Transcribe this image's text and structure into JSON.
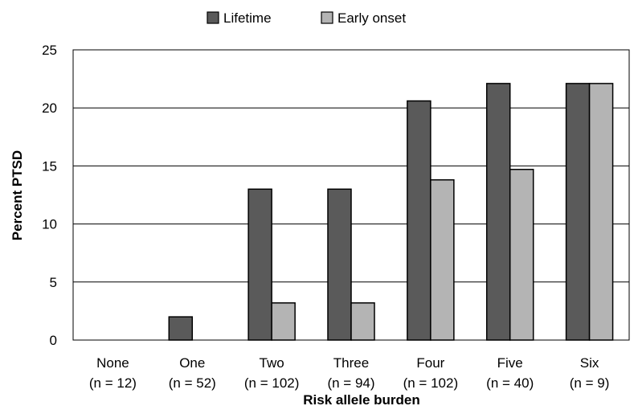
{
  "chart_data": {
    "type": "bar",
    "title": "",
    "xlabel": "Risk allele burden",
    "ylabel": "Percent PTSD",
    "ylim": [
      0,
      25
    ],
    "yticks": [
      0,
      5,
      10,
      15,
      20,
      25
    ],
    "grid": "horizontal",
    "legend_position": "top-center",
    "categories": [
      {
        "name": "None",
        "n": "(n = 12)"
      },
      {
        "name": "One",
        "n": "(n = 52)"
      },
      {
        "name": "Two",
        "n": "(n = 102)"
      },
      {
        "name": "Three",
        "n": "(n = 94)"
      },
      {
        "name": "Four",
        "n": "(n = 102)"
      },
      {
        "name": "Five",
        "n": "(n = 40)"
      },
      {
        "name": "Six",
        "n": "(n = 9)"
      }
    ],
    "series": [
      {
        "name": "Lifetime",
        "color": "#5a5a5a",
        "values": [
          0,
          2.0,
          13.0,
          13.0,
          20.6,
          22.1,
          22.1
        ]
      },
      {
        "name": "Early onset",
        "color": "#b4b4b4",
        "values": [
          0,
          0,
          3.2,
          3.2,
          13.8,
          14.7,
          22.1
        ]
      }
    ]
  }
}
